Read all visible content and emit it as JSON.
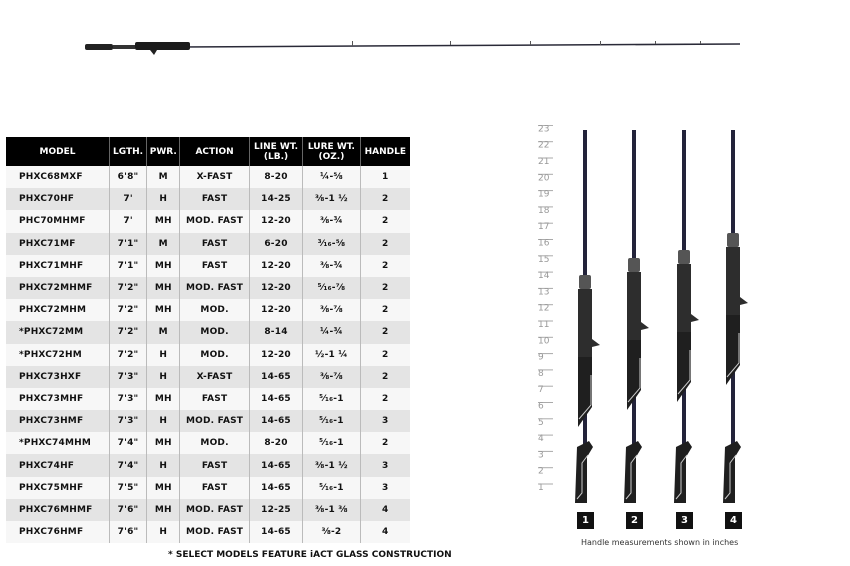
{
  "table": {
    "headers": [
      "MODEL",
      "LGTH.",
      "PWR.",
      "ACTION",
      "LINE WT.\n(LB.)",
      "LURE WT.\n(OZ.)",
      "HANDLE"
    ],
    "rows": [
      [
        "PHXC68MXF",
        "6'8\"",
        "M",
        "X-FAST",
        "8-20",
        "¼-⅝",
        "1"
      ],
      [
        "PHXC70HF",
        "7'",
        "H",
        "FAST",
        "14-25",
        "⅜-1 ½",
        "2"
      ],
      [
        "PHC70MHMF",
        "7'",
        "MH",
        "MOD. FAST",
        "12-20",
        "⅜-¾",
        "2"
      ],
      [
        "PHXC71MF",
        "7'1\"",
        "M",
        "FAST",
        "6-20",
        "³⁄₁₆-⅝",
        "2"
      ],
      [
        "PHXC71MHF",
        "7'1\"",
        "MH",
        "FAST",
        "12-20",
        "⅜-¾",
        "2"
      ],
      [
        "PHXC72MHMF",
        "7'2\"",
        "MH",
        "MOD. FAST",
        "12-20",
        "⁵⁄₁₆-⅞",
        "2"
      ],
      [
        "PHXC72MHM",
        "7'2\"",
        "MH",
        "MOD.",
        "12-20",
        "⅜-⅞",
        "2"
      ],
      [
        "*PHXC72MM",
        "7'2\"",
        "M",
        "MOD.",
        "8-14",
        "¼-¾",
        "2"
      ],
      [
        "*PHXC72HM",
        "7'2\"",
        "H",
        "MOD.",
        "12-20",
        "½-1 ¼",
        "2"
      ],
      [
        "PHXC73HXF",
        "7'3\"",
        "H",
        "X-FAST",
        "14-65",
        "⅜-⅞",
        "2"
      ],
      [
        "PHXC73MHF",
        "7'3\"",
        "MH",
        "FAST",
        "14-65",
        "⁵⁄₁₆-1",
        "2"
      ],
      [
        "PHXC73HMF",
        "7'3\"",
        "H",
        "MOD. FAST",
        "14-65",
        "⁵⁄₁₆-1",
        "3"
      ],
      [
        "*PHXC74MHM",
        "7'4\"",
        "MH",
        "MOD.",
        "8-20",
        "⁵⁄₁₆-1",
        "2"
      ],
      [
        "PHXC74HF",
        "7'4\"",
        "H",
        "FAST",
        "14-65",
        "⅜-1 ½",
        "3"
      ],
      [
        "PHXC75MHF",
        "7'5\"",
        "MH",
        "FAST",
        "14-65",
        "⁵⁄₁₆-1",
        "3"
      ],
      [
        "PHXC76MHMF",
        "7'6\"",
        "MH",
        "MOD. FAST",
        "12-25",
        "⅜-1 ⅜",
        "4"
      ],
      [
        "PHXC76HMF",
        "7'6\"",
        "H",
        "MOD. FAST",
        "14-65",
        "⅜-2",
        "4"
      ]
    ]
  },
  "footnote": "* SELECT MODELS FEATURE iACT GLASS CONSTRUCTION",
  "ruler_labels": [
    "1",
    "2",
    "3",
    "4",
    "5",
    "6",
    "7",
    "8",
    "9",
    "10",
    "11",
    "12",
    "13",
    "14",
    "15",
    "16",
    "17",
    "18",
    "19",
    "20",
    "21",
    "22",
    "23"
  ],
  "handles": [
    "1",
    "2",
    "3",
    "4"
  ],
  "caption": "Handle measurements shown in inches"
}
